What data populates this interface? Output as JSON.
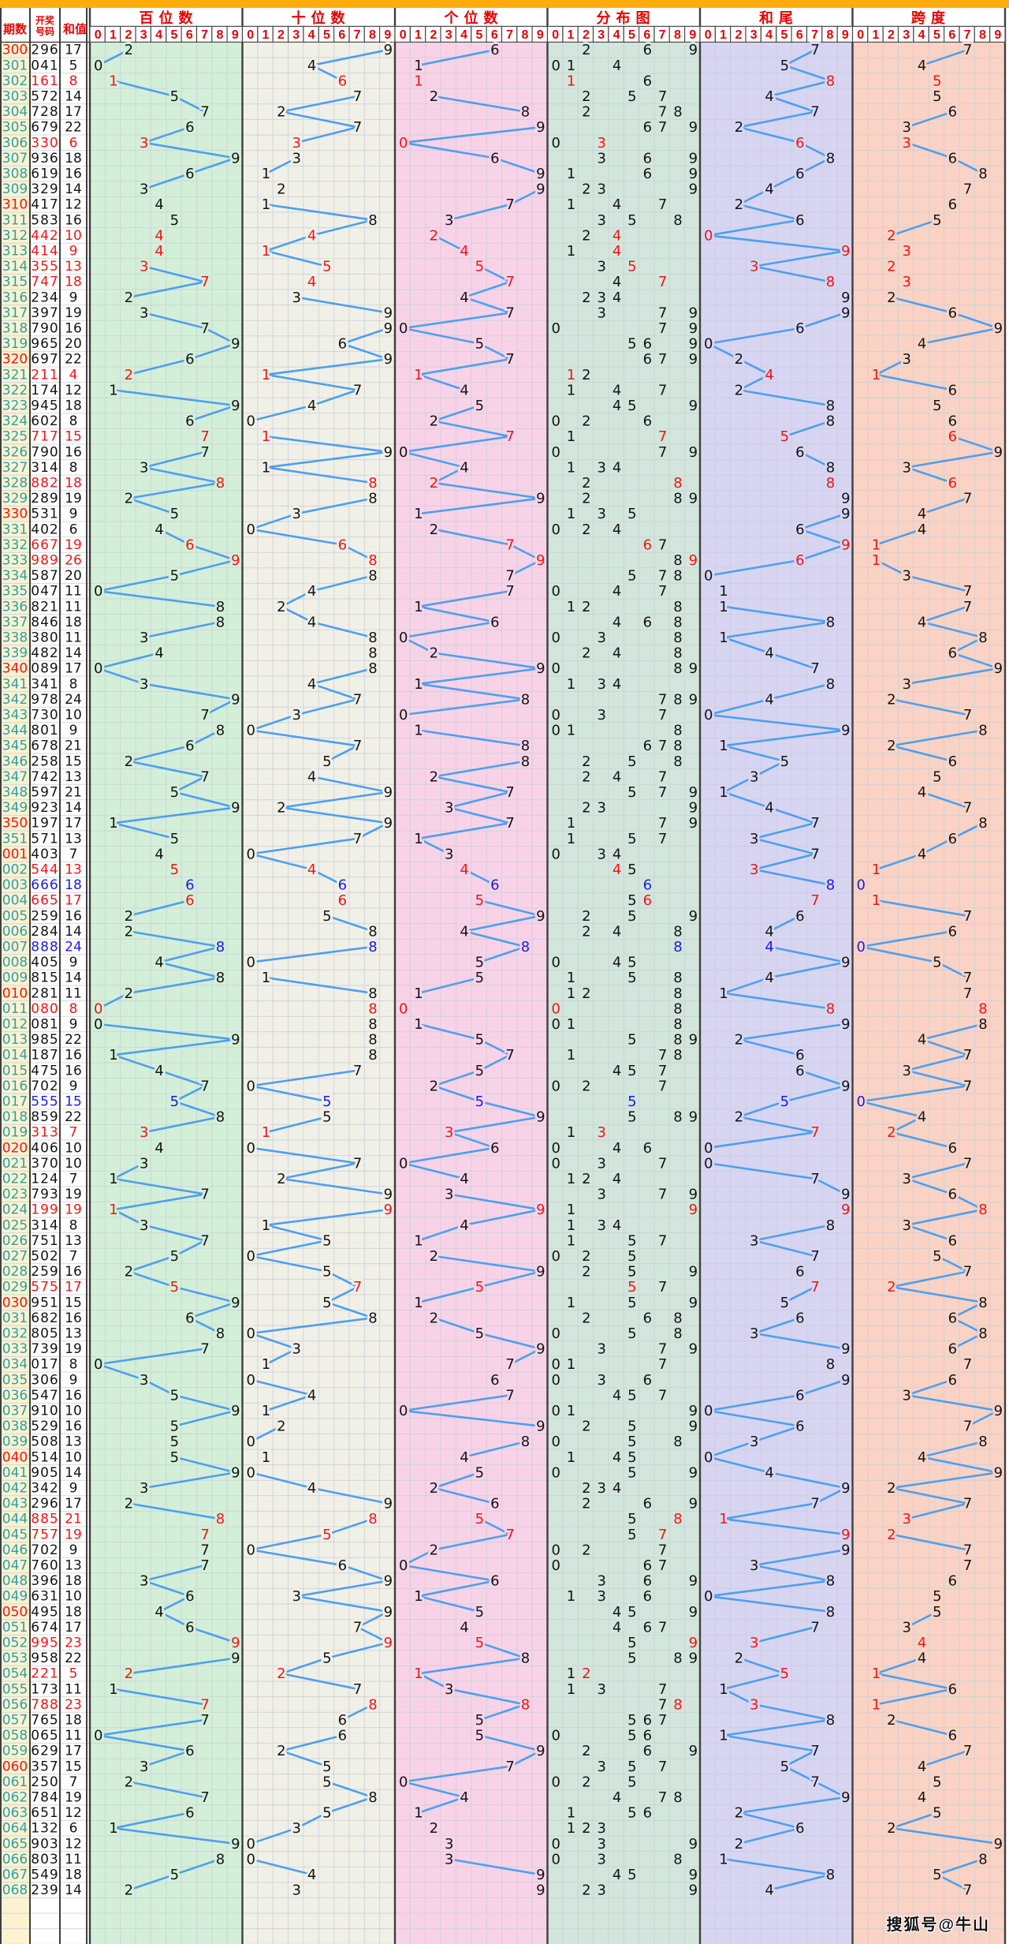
{
  "header": {
    "period_label": "期数",
    "number_label_line1": "开奖",
    "number_label_line2": "号码",
    "sum_label": "和值",
    "digit_labels": [
      "0",
      "1",
      "2",
      "3",
      "4",
      "5",
      "6",
      "7",
      "8",
      "9"
    ],
    "panels": [
      {
        "key": "hundreds",
        "title": "百位数",
        "bg": "#d4efd8",
        "type": "line"
      },
      {
        "key": "tens",
        "title": "十位数",
        "bg": "#f1f0e7",
        "type": "line"
      },
      {
        "key": "units",
        "title": "个位数",
        "bg": "#f8d3e8",
        "type": "line"
      },
      {
        "key": "distribution",
        "title": "分布图",
        "bg": "#d2e6db",
        "type": "marks"
      },
      {
        "key": "sum_tail",
        "title": "和尾",
        "bg": "#d7d5f2",
        "type": "line"
      },
      {
        "key": "span",
        "title": "跨度",
        "bg": "#fad3c4",
        "type": "line"
      }
    ]
  },
  "watermark": "搜狐号@牛山",
  "colors": {
    "topbar": "#FFAC0C",
    "header_red": "#E60000",
    "period_col_bg": "#FBF2D0",
    "period_teal": "#2E9FA8",
    "highlight_red": "#F21414",
    "triple_blue": "#1A1AE8",
    "normal_text": "#141414",
    "trend_line": "#4D9FEF",
    "grid_line": "#C9CFDA",
    "panel_border": "#3E3E3E"
  },
  "chart_data": {
    "type": "table",
    "columns": [
      "期数",
      "开奖号码",
      "和值"
    ],
    "panel_axis": [
      0,
      1,
      2,
      3,
      4,
      5,
      6,
      7,
      8,
      9
    ],
    "rows": [
      [
        "300",
        "296",
        17
      ],
      [
        "301",
        "041",
        5
      ],
      [
        "302",
        "161",
        8
      ],
      [
        "303",
        "572",
        14
      ],
      [
        "304",
        "728",
        17
      ],
      [
        "305",
        "679",
        22
      ],
      [
        "306",
        "330",
        6
      ],
      [
        "307",
        "936",
        18
      ],
      [
        "308",
        "619",
        16
      ],
      [
        "309",
        "329",
        14
      ],
      [
        "310",
        "417",
        12
      ],
      [
        "311",
        "583",
        16
      ],
      [
        "312",
        "442",
        10
      ],
      [
        "313",
        "414",
        9
      ],
      [
        "314",
        "355",
        13
      ],
      [
        "315",
        "747",
        18
      ],
      [
        "316",
        "234",
        9
      ],
      [
        "317",
        "397",
        19
      ],
      [
        "318",
        "790",
        16
      ],
      [
        "319",
        "965",
        20
      ],
      [
        "320",
        "697",
        22
      ],
      [
        "321",
        "211",
        4
      ],
      [
        "322",
        "174",
        12
      ],
      [
        "323",
        "945",
        18
      ],
      [
        "324",
        "602",
        8
      ],
      [
        "325",
        "717",
        15
      ],
      [
        "326",
        "790",
        16
      ],
      [
        "327",
        "314",
        8
      ],
      [
        "328",
        "882",
        18
      ],
      [
        "329",
        "289",
        19
      ],
      [
        "330",
        "531",
        9
      ],
      [
        "331",
        "402",
        6
      ],
      [
        "332",
        "667",
        19
      ],
      [
        "333",
        "989",
        26
      ],
      [
        "334",
        "587",
        20
      ],
      [
        "335",
        "047",
        11
      ],
      [
        "336",
        "821",
        11
      ],
      [
        "337",
        "846",
        18
      ],
      [
        "338",
        "380",
        11
      ],
      [
        "339",
        "482",
        14
      ],
      [
        "340",
        "089",
        17
      ],
      [
        "341",
        "341",
        8
      ],
      [
        "342",
        "978",
        24
      ],
      [
        "343",
        "730",
        10
      ],
      [
        "344",
        "801",
        9
      ],
      [
        "345",
        "678",
        21
      ],
      [
        "346",
        "258",
        15
      ],
      [
        "347",
        "742",
        13
      ],
      [
        "348",
        "597",
        21
      ],
      [
        "349",
        "923",
        14
      ],
      [
        "350",
        "197",
        17
      ],
      [
        "351",
        "571",
        13
      ],
      [
        "001",
        "403",
        7
      ],
      [
        "002",
        "544",
        13
      ],
      [
        "003",
        "666",
        18
      ],
      [
        "004",
        "665",
        17
      ],
      [
        "005",
        "259",
        16
      ],
      [
        "006",
        "284",
        14
      ],
      [
        "007",
        "888",
        24
      ],
      [
        "008",
        "405",
        9
      ],
      [
        "009",
        "815",
        14
      ],
      [
        "010",
        "281",
        11
      ],
      [
        "011",
        "080",
        8
      ],
      [
        "012",
        "081",
        9
      ],
      [
        "013",
        "985",
        22
      ],
      [
        "014",
        "187",
        16
      ],
      [
        "015",
        "475",
        16
      ],
      [
        "016",
        "702",
        9
      ],
      [
        "017",
        "555",
        15
      ],
      [
        "018",
        "859",
        22
      ],
      [
        "019",
        "313",
        7
      ],
      [
        "020",
        "406",
        10
      ],
      [
        "021",
        "370",
        10
      ],
      [
        "022",
        "124",
        7
      ],
      [
        "023",
        "793",
        19
      ],
      [
        "024",
        "199",
        19
      ],
      [
        "025",
        "314",
        8
      ],
      [
        "026",
        "751",
        13
      ],
      [
        "027",
        "502",
        7
      ],
      [
        "028",
        "259",
        16
      ],
      [
        "029",
        "575",
        17
      ],
      [
        "030",
        "951",
        15
      ],
      [
        "031",
        "682",
        16
      ],
      [
        "032",
        "805",
        13
      ],
      [
        "033",
        "739",
        19
      ],
      [
        "034",
        "017",
        8
      ],
      [
        "035",
        "306",
        9
      ],
      [
        "036",
        "547",
        16
      ],
      [
        "037",
        "910",
        10
      ],
      [
        "038",
        "529",
        16
      ],
      [
        "039",
        "508",
        13
      ],
      [
        "040",
        "514",
        10
      ],
      [
        "041",
        "905",
        14
      ],
      [
        "042",
        "342",
        9
      ],
      [
        "043",
        "296",
        17
      ],
      [
        "044",
        "885",
        21
      ],
      [
        "045",
        "757",
        19
      ],
      [
        "046",
        "702",
        9
      ],
      [
        "047",
        "760",
        13
      ],
      [
        "048",
        "396",
        18
      ],
      [
        "049",
        "631",
        10
      ],
      [
        "050",
        "495",
        18
      ],
      [
        "051",
        "674",
        17
      ],
      [
        "052",
        "995",
        23
      ],
      [
        "053",
        "958",
        22
      ],
      [
        "054",
        "221",
        5
      ],
      [
        "055",
        "173",
        11
      ],
      [
        "056",
        "788",
        23
      ],
      [
        "057",
        "765",
        18
      ],
      [
        "058",
        "065",
        11
      ],
      [
        "059",
        "629",
        17
      ],
      [
        "060",
        "357",
        15
      ],
      [
        "061",
        "250",
        7
      ],
      [
        "062",
        "784",
        19
      ],
      [
        "063",
        "651",
        12
      ],
      [
        "064",
        "132",
        6
      ],
      [
        "065",
        "903",
        12
      ],
      [
        "066",
        "803",
        11
      ],
      [
        "067",
        "549",
        18
      ],
      [
        "068",
        "239",
        14
      ]
    ]
  }
}
